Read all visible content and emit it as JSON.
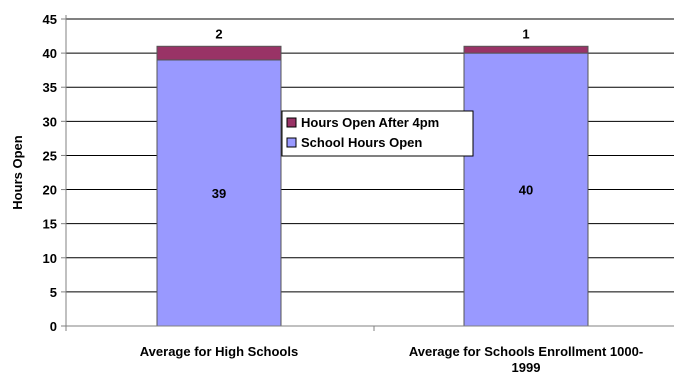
{
  "chart_data": {
    "type": "bar",
    "stacked": true,
    "categories": [
      "Average for High Schools",
      "Average for Schools Enrollment 1000-1999"
    ],
    "category_label_lines": [
      [
        "Average for High Schools"
      ],
      [
        "Average for Schools Enrollment 1000-",
        "1999"
      ]
    ],
    "series": [
      {
        "name": "School Hours Open",
        "values": [
          39,
          40
        ],
        "color": "#9999ff"
      },
      {
        "name": "Hours Open After 4pm",
        "values": [
          2,
          1
        ],
        "color": "#993366"
      }
    ],
    "title": "",
    "xlabel": "",
    "ylabel": "Hours Open",
    "ylim": [
      0,
      45
    ],
    "yticks": [
      0,
      5,
      10,
      15,
      20,
      25,
      30,
      35,
      40,
      45
    ],
    "grid": true,
    "legend_position": "center",
    "legend_order": [
      "Hours Open After 4pm",
      "School Hours Open"
    ],
    "colors": {
      "gridline": "#000000",
      "axis": "#808080",
      "bar_border": "#555555"
    }
  }
}
